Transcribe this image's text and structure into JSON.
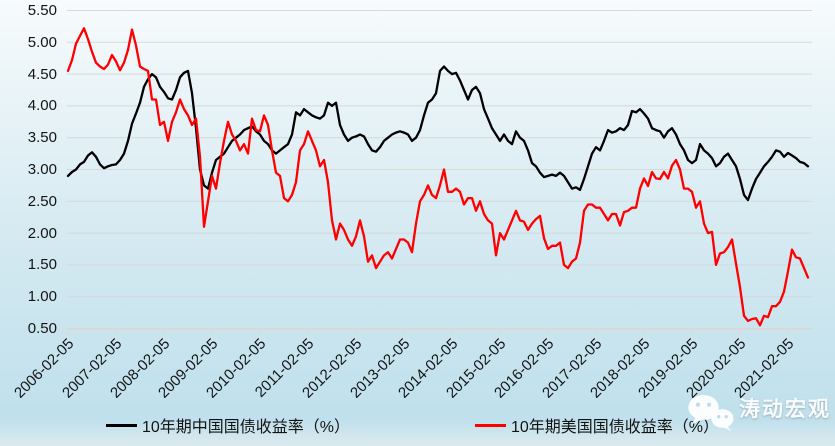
{
  "chart_data": {
    "type": "line",
    "title": "",
    "grid": true,
    "legend_position": "bottom",
    "x_axis": {
      "interval": "monthly",
      "x_start": "2006-02",
      "x_end": "2021-07",
      "tick_labels": [
        "2006-02-05",
        "2007-02-05",
        "2008-02-05",
        "2009-02-05",
        "2010-02-05",
        "2011-02-05",
        "2012-02-05",
        "2013-02-05",
        "2014-02-05",
        "2015-02-05",
        "2016-02-05",
        "2017-02-05",
        "2018-02-05",
        "2019-02-05",
        "2020-02-05",
        "2021-02-05"
      ]
    },
    "y_axis": {
      "min": 0.5,
      "max": 5.5,
      "step": 0.5,
      "tick_labels": [
        "5.50",
        "5.00",
        "4.50",
        "4.00",
        "3.50",
        "3.00",
        "2.50",
        "2.00",
        "1.50",
        "1.00",
        "0.50"
      ]
    },
    "series": [
      {
        "name": "10年期中国国债收益率（%）",
        "color": "#000000",
        "values": [
          2.9,
          2.96,
          3.0,
          3.08,
          3.12,
          3.22,
          3.27,
          3.2,
          3.08,
          3.02,
          3.05,
          3.07,
          3.08,
          3.15,
          3.25,
          3.45,
          3.72,
          3.88,
          4.05,
          4.3,
          4.42,
          4.5,
          4.45,
          4.3,
          4.22,
          4.12,
          4.1,
          4.25,
          4.45,
          4.52,
          4.55,
          4.2,
          3.65,
          3.0,
          2.75,
          2.7,
          2.95,
          3.15,
          3.2,
          3.25,
          3.35,
          3.45,
          3.5,
          3.55,
          3.62,
          3.65,
          3.68,
          3.6,
          3.55,
          3.45,
          3.4,
          3.3,
          3.25,
          3.3,
          3.35,
          3.4,
          3.55,
          3.9,
          3.85,
          3.95,
          3.9,
          3.85,
          3.82,
          3.8,
          3.85,
          4.05,
          4.0,
          4.05,
          3.7,
          3.55,
          3.45,
          3.5,
          3.52,
          3.55,
          3.52,
          3.4,
          3.3,
          3.28,
          3.35,
          3.45,
          3.5,
          3.55,
          3.58,
          3.6,
          3.58,
          3.55,
          3.45,
          3.5,
          3.62,
          3.85,
          4.05,
          4.1,
          4.2,
          4.55,
          4.62,
          4.55,
          4.5,
          4.52,
          4.4,
          4.25,
          4.1,
          4.25,
          4.3,
          4.2,
          3.95,
          3.8,
          3.65,
          3.55,
          3.45,
          3.55,
          3.45,
          3.4,
          3.6,
          3.5,
          3.45,
          3.3,
          3.1,
          3.05,
          2.95,
          2.88,
          2.9,
          2.92,
          2.9,
          2.95,
          2.9,
          2.8,
          2.7,
          2.72,
          2.68,
          2.85,
          3.05,
          3.25,
          3.35,
          3.3,
          3.45,
          3.62,
          3.58,
          3.6,
          3.65,
          3.62,
          3.7,
          3.92,
          3.9,
          3.95,
          3.88,
          3.8,
          3.65,
          3.62,
          3.6,
          3.5,
          3.6,
          3.65,
          3.55,
          3.4,
          3.3,
          3.15,
          3.1,
          3.15,
          3.4,
          3.3,
          3.25,
          3.18,
          3.05,
          3.1,
          3.2,
          3.25,
          3.15,
          3.05,
          2.85,
          2.6,
          2.52,
          2.7,
          2.85,
          2.95,
          3.05,
          3.12,
          3.2,
          3.3,
          3.28,
          3.2,
          3.26,
          3.22,
          3.18,
          3.12,
          3.1,
          3.05
        ]
      },
      {
        "name": "10年期美国国债收益率（%）",
        "color": "#fe0000",
        "values": [
          4.55,
          4.72,
          4.98,
          5.1,
          5.22,
          5.05,
          4.85,
          4.68,
          4.62,
          4.58,
          4.65,
          4.8,
          4.7,
          4.56,
          4.68,
          4.88,
          5.2,
          4.95,
          4.62,
          4.58,
          4.55,
          4.1,
          4.1,
          3.7,
          3.75,
          3.45,
          3.75,
          3.9,
          4.1,
          3.95,
          3.85,
          3.7,
          3.8,
          3.2,
          2.1,
          2.5,
          2.9,
          2.7,
          3.1,
          3.45,
          3.75,
          3.55,
          3.45,
          3.3,
          3.4,
          3.25,
          3.8,
          3.62,
          3.6,
          3.85,
          3.7,
          3.3,
          2.95,
          2.9,
          2.55,
          2.5,
          2.6,
          2.8,
          3.3,
          3.4,
          3.6,
          3.45,
          3.3,
          3.05,
          3.15,
          2.8,
          2.2,
          1.9,
          2.15,
          2.05,
          1.9,
          1.8,
          1.95,
          2.2,
          1.95,
          1.55,
          1.65,
          1.45,
          1.55,
          1.65,
          1.7,
          1.6,
          1.75,
          1.9,
          1.9,
          1.85,
          1.7,
          2.15,
          2.5,
          2.6,
          2.75,
          2.6,
          2.55,
          2.75,
          3.0,
          2.65,
          2.65,
          2.7,
          2.65,
          2.45,
          2.55,
          2.55,
          2.35,
          2.5,
          2.3,
          2.2,
          2.15,
          1.65,
          2.0,
          1.9,
          2.05,
          2.2,
          2.35,
          2.2,
          2.18,
          2.05,
          2.15,
          2.22,
          2.27,
          1.92,
          1.75,
          1.8,
          1.8,
          1.85,
          1.5,
          1.45,
          1.55,
          1.6,
          1.85,
          2.35,
          2.45,
          2.45,
          2.4,
          2.4,
          2.3,
          2.2,
          2.3,
          2.3,
          2.12,
          2.33,
          2.35,
          2.4,
          2.4,
          2.7,
          2.86,
          2.74,
          2.96,
          2.86,
          2.85,
          2.96,
          2.86,
          3.06,
          3.15,
          3.0,
          2.7,
          2.7,
          2.65,
          2.4,
          2.5,
          2.15,
          2.0,
          2.02,
          1.5,
          1.68,
          1.7,
          1.78,
          1.9,
          1.52,
          1.15,
          0.7,
          0.62,
          0.65,
          0.66,
          0.55,
          0.7,
          0.68,
          0.85,
          0.85,
          0.92,
          1.08,
          1.4,
          1.74,
          1.62,
          1.6,
          1.45,
          1.3
        ]
      }
    ]
  },
  "watermark": {
    "text": "涛动宏观"
  },
  "colors": {
    "china_line": "#000000",
    "us_line": "#fe0000",
    "gridline": "#d4d7d8",
    "axis": "#ded8d8",
    "background_top": "#f7fbfd",
    "background_bottom": "#bfe0ec"
  }
}
